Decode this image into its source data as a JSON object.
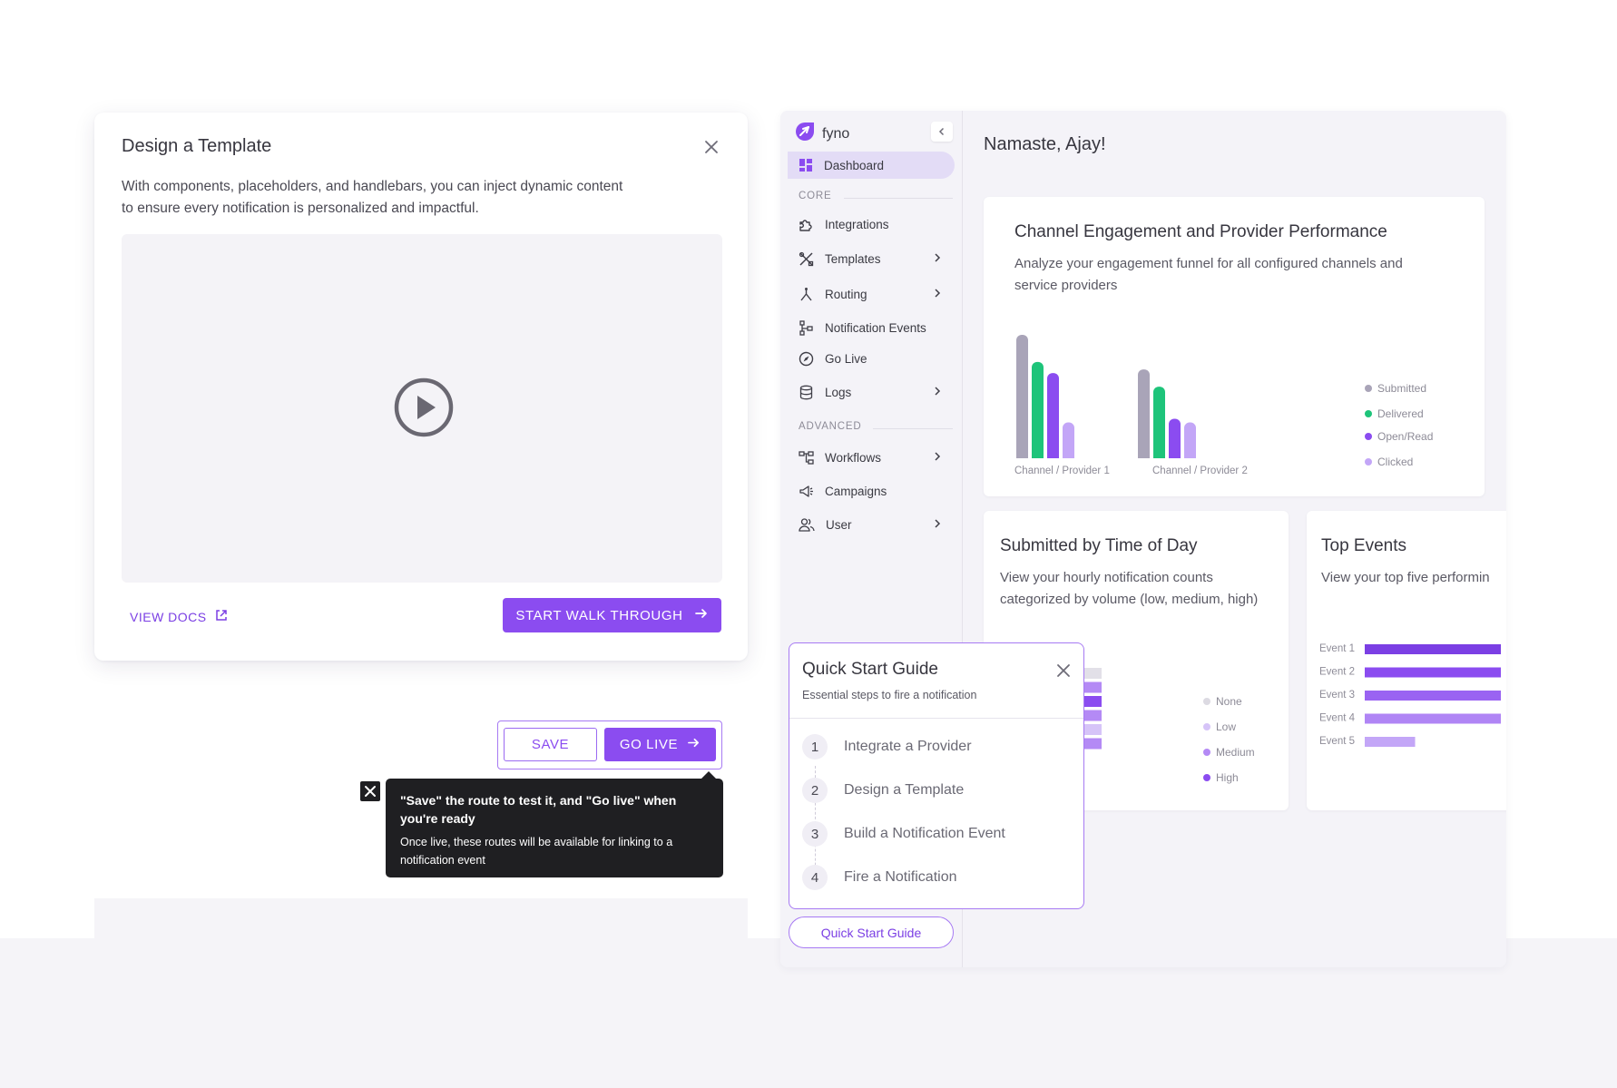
{
  "modal": {
    "title": "Design a Template",
    "description": "With  components, placeholders, and handlebars, you can inject dynamic content to ensure every notification is personalized and impactful.",
    "view_docs": "VIEW DOCS",
    "walk_through": "START WALK THROUGH"
  },
  "route_actions": {
    "save": "SAVE",
    "go_live": "GO LIVE",
    "tooltip_title": "\"Save\" the route to test it, and \"Go live\" when you're ready",
    "tooltip_body": "Once live, these routes will be available for linking to a notification event"
  },
  "sidebar": {
    "brand": "fyno",
    "dashboard": "Dashboard",
    "core_label": "CORE",
    "advanced_label": "ADVANCED",
    "items": [
      {
        "label": "Integrations",
        "icon": "puzzle-icon"
      },
      {
        "label": "Templates",
        "icon": "tools-icon"
      },
      {
        "label": "Routing",
        "icon": "routing-icon"
      },
      {
        "label": "Notification Events",
        "icon": "events-icon"
      },
      {
        "label": "Go Live",
        "icon": "compass-icon"
      },
      {
        "label": "Logs",
        "icon": "database-icon"
      },
      {
        "label": "Workflows",
        "icon": "workflow-icon"
      },
      {
        "label": "Campaigns",
        "icon": "megaphone-icon"
      },
      {
        "label": "User",
        "icon": "users-icon"
      }
    ]
  },
  "dashboard": {
    "greeting": "Namaste, Ajay!",
    "engagement": {
      "title": "Channel Engagement and Provider Performance",
      "description": "Analyze your engagement funnel for all configured channels and service providers"
    },
    "time_of_day": {
      "title": "Submitted by Time of Day",
      "description": "View your hourly notification counts categorized by volume (low, medium, high)"
    },
    "top_events": {
      "title": "Top Events",
      "description": "View your top five performin"
    }
  },
  "quick_start": {
    "title": "Quick Start Guide",
    "subtitle": "Essential steps to fire a notification",
    "button": "Quick Start Guide",
    "steps": [
      {
        "num": "1",
        "label": "Integrate a Provider"
      },
      {
        "num": "2",
        "label": "Design a Template"
      },
      {
        "num": "3",
        "label": "Build a Notification Event"
      },
      {
        "num": "4",
        "label": "Fire a Notification"
      }
    ]
  },
  "colors": {
    "accent": "#8b4cf0",
    "submitted": "#a9a4b8",
    "delivered": "#1ec47a",
    "open_read": "#8b4cf0",
    "clicked": "#c3a6f7"
  },
  "chart_data": [
    {
      "type": "bar",
      "categories": [
        "Channel / Provider 1",
        "Channel / Provider 2"
      ],
      "series": [
        {
          "name": "Submitted",
          "values": [
            100,
            72
          ]
        },
        {
          "name": "Delivered",
          "values": [
            78,
            58
          ]
        },
        {
          "name": "Open/Read",
          "values": [
            69,
            32
          ]
        },
        {
          "name": "Clicked",
          "values": [
            29,
            29
          ]
        }
      ],
      "legend_position": "right",
      "grid": false
    },
    {
      "type": "bar",
      "orientation": "horizontal",
      "categories": [
        "Event 1",
        "Event 2",
        "Event 3",
        "Event 4",
        "Event 5"
      ],
      "values": [
        100,
        100,
        100,
        100,
        37
      ],
      "grid": false
    },
    {
      "type": "heatmap",
      "legend": [
        "None",
        "Low",
        "Medium",
        "High"
      ]
    }
  ]
}
